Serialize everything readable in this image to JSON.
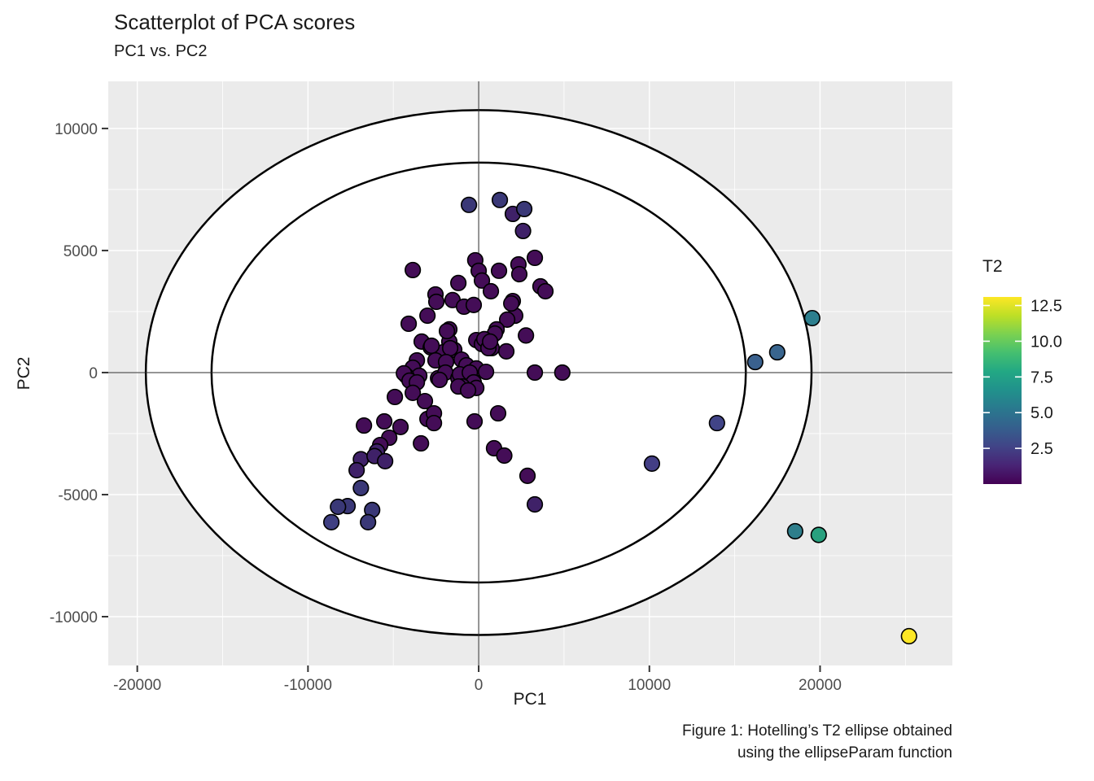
{
  "chart_data": {
    "type": "scatter",
    "title": "Scatterplot of PCA scores",
    "subtitle": "PC1 vs. PC2",
    "xlabel": "PC1",
    "ylabel": "PC2",
    "xlim": [
      -21700,
      27750
    ],
    "ylim": [
      -12000,
      11930
    ],
    "x_ticks": {
      "values": [
        -20000,
        -10000,
        0,
        10000,
        20000
      ],
      "labels": [
        "-20000",
        "-10000",
        "0",
        "10000",
        "20000"
      ]
    },
    "y_ticks": {
      "values": [
        10000,
        5000,
        0,
        -5000,
        -10000
      ],
      "labels": [
        "10000",
        "5000",
        "0",
        "-5000",
        "-10000"
      ]
    },
    "x_minor": [
      -15000,
      -5000,
      5000,
      15000,
      25000
    ],
    "y_minor": [
      -7500,
      -2500,
      2500,
      7500
    ],
    "grid": true,
    "colors": {
      "panel_bg": "#ebebeb",
      "grid": "#ffffff",
      "zero_line": "#2b2b2b",
      "ellipse_fill": "#ffffff",
      "ellipse_stroke": "#000000",
      "point_stroke": "#000000",
      "tick_label": "#4d4d4d",
      "text": "#1a1a1a"
    },
    "ellipses": [
      {
        "name": "hotelling-outer",
        "cx": 0,
        "cy": 0,
        "rx": 19500,
        "ry": 10750
      },
      {
        "name": "hotelling-inner",
        "cx": 0,
        "cy": 0,
        "rx": 15650,
        "ry": 8600
      }
    ],
    "zero_lines": {
      "x": 0,
      "y": 0
    },
    "points": [
      [
        -570,
        6870,
        "#3a3877"
      ],
      [
        1240,
        7070,
        "#3a3877"
      ],
      [
        2000,
        6500,
        "#3f2168"
      ],
      [
        2670,
        6700,
        "#3a3877"
      ],
      [
        2600,
        5800,
        "#3f2168"
      ],
      [
        -3860,
        4200,
        "#440d57"
      ],
      [
        -200,
        4600,
        "#440d57"
      ],
      [
        0,
        4170,
        "#440d57"
      ],
      [
        190,
        3770,
        "#440d57"
      ],
      [
        1190,
        4170,
        "#440d57"
      ],
      [
        2330,
        4430,
        "#440d57"
      ],
      [
        2380,
        4030,
        "#440d57"
      ],
      [
        3290,
        4700,
        "#440d57"
      ],
      [
        3620,
        3530,
        "#440d57"
      ],
      [
        3910,
        3330,
        "#440d57"
      ],
      [
        -1190,
        3670,
        "#440d57"
      ],
      [
        -2530,
        3200,
        "#440d57"
      ],
      [
        715,
        3330,
        "#440d57"
      ],
      [
        -2480,
        2900,
        "#440d57"
      ],
      [
        -1530,
        2970,
        "#440d57"
      ],
      [
        -860,
        2700,
        "#440d57"
      ],
      [
        -290,
        2770,
        "#440d57"
      ],
      [
        2000,
        2930,
        "#440d57"
      ],
      [
        2140,
        2330,
        "#440d57"
      ],
      [
        1910,
        2830,
        "#440d57"
      ],
      [
        1670,
        2170,
        "#440d57"
      ],
      [
        -3000,
        2330,
        "#440d57"
      ],
      [
        -4100,
        2000,
        "#440d57"
      ],
      [
        -1720,
        1770,
        "#440d57"
      ],
      [
        -1720,
        1270,
        "#440d57"
      ],
      [
        -1430,
        930,
        "#440d57"
      ],
      [
        -3340,
        1270,
        "#440d57"
      ],
      [
        -2810,
        1030,
        "#440d57"
      ],
      [
        -2430,
        530,
        "#440d57"
      ],
      [
        -2100,
        830,
        "#440d57"
      ],
      [
        -1000,
        530,
        "#440d57"
      ],
      [
        -715,
        300,
        "#440d57"
      ],
      [
        -140,
        1330,
        "#440d57"
      ],
      [
        190,
        1170,
        "#440d57"
      ],
      [
        1050,
        1770,
        "#440d57"
      ],
      [
        760,
        1000,
        "#440d57"
      ],
      [
        1620,
        870,
        "#440d57"
      ],
      [
        2770,
        1520,
        "#440d57"
      ],
      [
        950,
        1600,
        "#440d57"
      ],
      [
        -1860,
        1700,
        "#440d57"
      ],
      [
        -2760,
        1100,
        "#440d57"
      ],
      [
        -1670,
        1000,
        "#440d57"
      ],
      [
        -2530,
        500,
        "#440d57"
      ],
      [
        -1910,
        430,
        "#440d57"
      ],
      [
        -3620,
        500,
        "#440d57"
      ],
      [
        330,
        1370,
        "#440d57"
      ],
      [
        570,
        1000,
        "#440d57"
      ],
      [
        670,
        1270,
        "#440d57"
      ],
      [
        -3860,
        200,
        "#440d57"
      ],
      [
        -3480,
        -130,
        "#440d57"
      ],
      [
        -4240,
        -130,
        "#440d57"
      ],
      [
        -2380,
        -230,
        "#440d57"
      ],
      [
        -1950,
        0,
        "#440d57"
      ],
      [
        -1190,
        -230,
        "#440d57"
      ],
      [
        -715,
        -400,
        "#440d57"
      ],
      [
        -480,
        -230,
        "#440d57"
      ],
      [
        3290,
        0,
        "#440d57"
      ],
      [
        4900,
        0,
        "#440d57"
      ],
      [
        -140,
        170,
        "#440d57"
      ],
      [
        430,
        30,
        "#440d57"
      ],
      [
        -4380,
        -30,
        "#440d57"
      ],
      [
        -4050,
        -330,
        "#440d57"
      ],
      [
        -3620,
        -400,
        "#440d57"
      ],
      [
        -1100,
        -70,
        "#440d57"
      ],
      [
        -520,
        0,
        "#440d57"
      ],
      [
        -290,
        -400,
        "#440d57"
      ],
      [
        -950,
        -570,
        "#440d57"
      ],
      [
        -2290,
        -300,
        "#440d57"
      ],
      [
        -140,
        -630,
        "#440d57"
      ],
      [
        -1190,
        -570,
        "#440d57"
      ],
      [
        -620,
        -730,
        "#440d57"
      ],
      [
        -4910,
        -1000,
        "#440d57"
      ],
      [
        -3860,
        -830,
        "#440d57"
      ],
      [
        -3150,
        -1170,
        "#440d57"
      ],
      [
        -3000,
        -1900,
        "#440d57"
      ],
      [
        -2620,
        -1670,
        "#440d57"
      ],
      [
        -2620,
        -2070,
        "#440d57"
      ],
      [
        -3380,
        -2900,
        "#440d57"
      ],
      [
        -6720,
        -2170,
        "#440d57"
      ],
      [
        -5530,
        -2000,
        "#440d57"
      ],
      [
        -4580,
        -2230,
        "#440d57"
      ],
      [
        -5240,
        -2670,
        "#440d57"
      ],
      [
        -5770,
        -2970,
        "#440d57"
      ],
      [
        -5960,
        -3230,
        "#3f2168"
      ],
      [
        -6900,
        -3550,
        "#3f2168"
      ],
      [
        -6100,
        -3420,
        "#3f2168"
      ],
      [
        -5480,
        -3630,
        "#3f2168"
      ],
      [
        -7150,
        -4000,
        "#3f2168"
      ],
      [
        -6900,
        -4730,
        "#3a3877"
      ],
      [
        -7680,
        -5470,
        "#3a3877"
      ],
      [
        -8240,
        -5500,
        "#3a3877"
      ],
      [
        -8630,
        -6130,
        "#3f3f82"
      ],
      [
        -6240,
        -5630,
        "#3a3877"
      ],
      [
        -6480,
        -6130,
        "#3a3877"
      ],
      [
        -240,
        -2000,
        "#440d57"
      ],
      [
        1140,
        -1670,
        "#440d57"
      ],
      [
        900,
        -3100,
        "#440d57"
      ],
      [
        1500,
        -3400,
        "#440d57"
      ],
      [
        2860,
        -4230,
        "#440d57"
      ],
      [
        3290,
        -5400,
        "#3f2168"
      ],
      [
        10150,
        -3730,
        "#433e85"
      ],
      [
        13960,
        -2070,
        "#414487"
      ],
      [
        16200,
        430,
        "#3a618e"
      ],
      [
        17490,
        830,
        "#39658e"
      ],
      [
        19540,
        2230,
        "#2d7f8e"
      ],
      [
        18540,
        -6500,
        "#2e7e8b"
      ],
      [
        19920,
        -6650,
        "#28a07e"
      ],
      [
        25210,
        -10800,
        "#fde725"
      ]
    ],
    "legend": {
      "title": "T2",
      "min": 0,
      "max": 13.1,
      "ticks": [
        2.5,
        5.0,
        7.5,
        10.0,
        12.5
      ],
      "tick_labels": [
        "2.5",
        "5.0",
        "7.5",
        "10.0",
        "12.5"
      ],
      "gradient": [
        "#440154",
        "#482475",
        "#414487",
        "#355f8d",
        "#2a788e",
        "#21918c",
        "#22a884",
        "#44bf70",
        "#7ad151",
        "#bddf26",
        "#fde725"
      ],
      "position": "right"
    },
    "caption": {
      "line1": "Figure 1: Hotelling’s T2 ellipse obtained",
      "line2": "using the ellipseParam function"
    }
  }
}
